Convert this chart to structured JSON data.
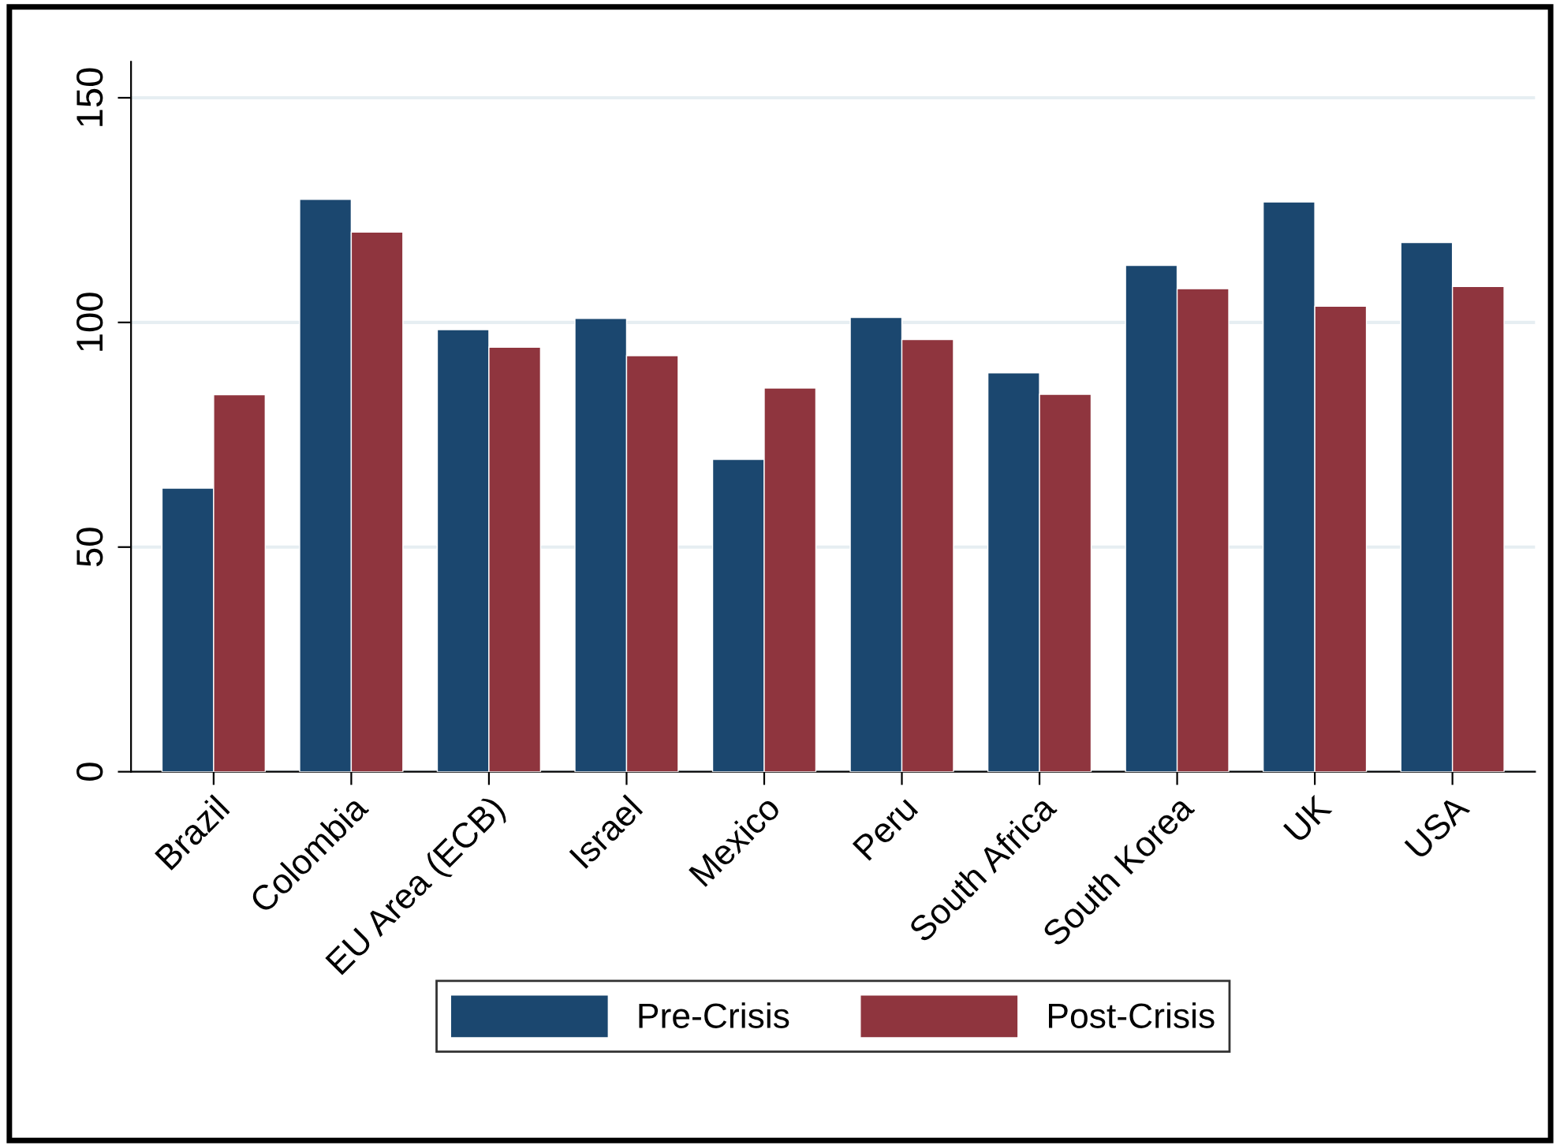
{
  "chart_data": {
    "type": "bar",
    "categories": [
      "Brazil",
      "Colombia",
      "EU Area (ECB)",
      "Israel",
      "Mexico",
      "Peru",
      "South Africa",
      "South Korea",
      "UK",
      "USA"
    ],
    "series": [
      {
        "name": "Pre-Crisis",
        "color": "#1b476f",
        "values": [
          63.1,
          127.4,
          98.4,
          100.9,
          69.5,
          101.1,
          88.8,
          112.7,
          126.8,
          117.8
        ]
      },
      {
        "name": "Post-Crisis",
        "color": "#8f353e",
        "values": [
          83.9,
          120.1,
          94.5,
          92.6,
          85.4,
          96.2,
          84.0,
          107.5,
          103.6,
          108.0
        ]
      }
    ],
    "ylim": [
      0,
      158
    ],
    "yticks": [
      0,
      50,
      100,
      150
    ],
    "grid": "y",
    "legend": "bottom"
  }
}
